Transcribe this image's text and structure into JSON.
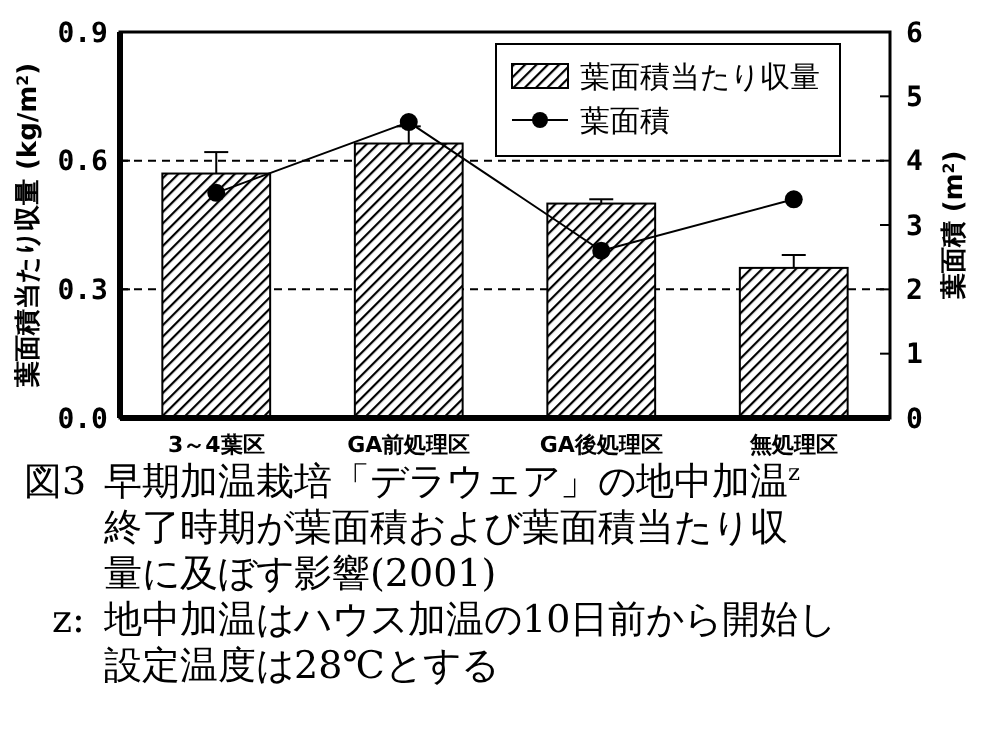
{
  "chart_data": {
    "type": "bar",
    "title": "図3 早期加温栽培「デラウェア」の地中加温$^{z}$終了時期が葉面積および葉面積当たり収量に及ぼす影響(2001)",
    "annotations": [
      "z:地中加温はハウス加温の10日前から開始し設定温度は28℃とする"
    ],
    "ylabel": "葉面積当たり収量 (kg/m$^{2}$)",
    "y2label": "葉面積 (m$^{2}$)",
    "categories": [
      "3～4葉区",
      "GA前処理区",
      "GA後処理区",
      "無処理区"
    ],
    "series": [
      {
        "name": "葉面積当たり収量",
        "color": "#000000",
        "values": [
          0.57,
          0.64,
          0.5,
          0.35
        ],
        "errors": [
          0.05,
          0.04,
          0.01,
          0.03
        ]
      },
      {
        "name": "葉面積",
        "type": "line",
        "axis": "y2",
        "color": "#000000",
        "marker": "circle",
        "values": [
          3.5,
          4.6,
          2.6,
          3.4
        ]
      }
    ],
    "ylim": [
      0,
      0.9
    ],
    "yticks": [
      {
        "value": 0,
        "label": "0.0"
      },
      0.3,
      0.6,
      0.9
    ],
    "y2lim": [
      0,
      6
    ],
    "y2ticks": [
      0,
      1,
      2,
      3,
      4,
      5,
      6
    ],
    "grid": "y",
    "legend": "top right"
  }
}
